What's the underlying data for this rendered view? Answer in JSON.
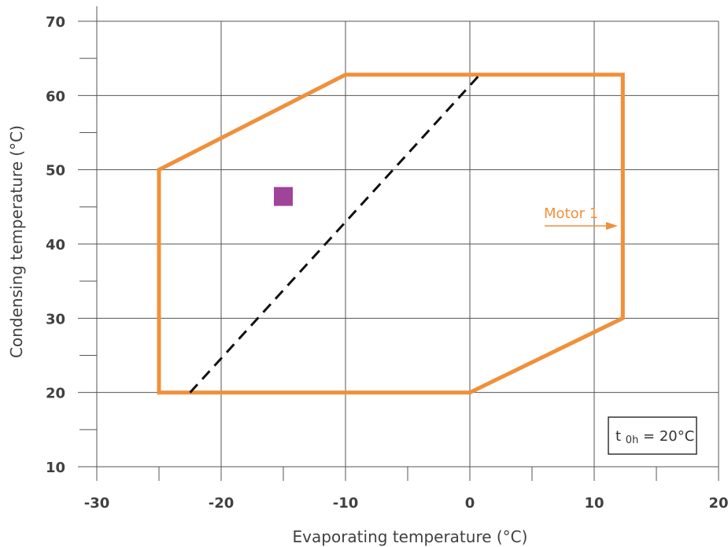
{
  "chart_data": {
    "type": "line",
    "xlabel": "Evaporating temperature (°C)",
    "ylabel": "Condensing temperature (°C)",
    "xlim": [
      -30,
      20
    ],
    "ylim": [
      10,
      70
    ],
    "x_ticks": [
      -30,
      -20,
      -10,
      0,
      10,
      20
    ],
    "y_ticks": [
      10,
      20,
      30,
      40,
      50,
      60,
      70
    ],
    "x_tick_labels": [
      "-30",
      "-20",
      "-10",
      "0",
      "10",
      "20"
    ],
    "y_tick_labels": [
      "10",
      "20",
      "30",
      "40",
      "50",
      "60",
      "70"
    ],
    "grid": true,
    "series": [
      {
        "name": "Motor 1",
        "style": "solid",
        "color": "#F0903A",
        "closed": true,
        "points": [
          [
            -25,
            20
          ],
          [
            0,
            20
          ],
          [
            12.3,
            30
          ],
          [
            12.3,
            62.8
          ],
          [
            -10,
            62.8
          ],
          [
            -25,
            50
          ]
        ]
      },
      {
        "style": "dashed",
        "color": "#111111",
        "points": [
          [
            -22.5,
            20
          ],
          [
            0.8,
            62.8
          ]
        ]
      }
    ],
    "markers": [
      {
        "shape": "square",
        "color": "#A0449A",
        "x": -15,
        "y": 46.4
      }
    ],
    "annotations": {
      "motor_label": "Motor 1",
      "condition_box": {
        "symbol_main": "t",
        "symbol_sub": "0h",
        "value_text": "= 20°C"
      }
    }
  }
}
